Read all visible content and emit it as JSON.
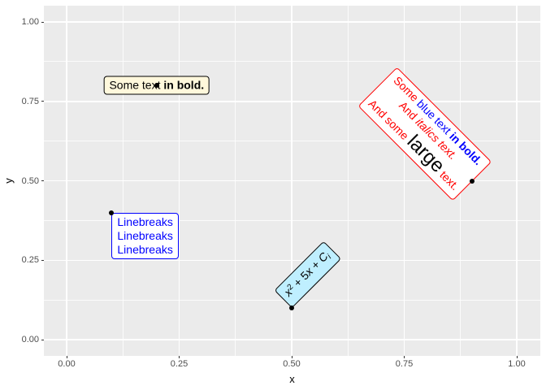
{
  "style": {
    "background": "#FFFFFF",
    "panel_background": "#EBEBEB",
    "grid_color": "#FFFFFF",
    "tick_mark_color": "#333333",
    "tick_label_color": "#4D4D4D",
    "axis_title_color": "#000000",
    "point_color": "#000000"
  },
  "chart_data": {
    "type": "scatter",
    "title": "",
    "xlabel": "x",
    "ylabel": "y",
    "xlim": [
      -0.05,
      1.05
    ],
    "ylim": [
      -0.05,
      1.05
    ],
    "grid": "white major and minor gridlines on grey panel (ggplot2 theme_grey), minors at 0.125 intervals",
    "legend": "none",
    "x_axis": {
      "ticks": [
        {
          "value": 0.0,
          "label": "0.00"
        },
        {
          "value": 0.25,
          "label": "0.25"
        },
        {
          "value": 0.5,
          "label": "0.50"
        },
        {
          "value": 0.75,
          "label": "0.75"
        },
        {
          "value": 1.0,
          "label": "1.00"
        }
      ]
    },
    "y_axis": {
      "ticks": [
        {
          "value": 0.0,
          "label": "0.00"
        },
        {
          "value": 0.25,
          "label": "0.25"
        },
        {
          "value": 0.5,
          "label": "0.50"
        },
        {
          "value": 0.75,
          "label": "0.75"
        },
        {
          "value": 1.0,
          "label": "1.00"
        }
      ]
    },
    "points": [
      {
        "x": 0.2,
        "y": 0.8
      },
      {
        "x": 0.1,
        "y": 0.4
      },
      {
        "x": 0.5,
        "y": 0.1
      },
      {
        "x": 0.9,
        "y": 0.5
      }
    ],
    "labels": [
      {
        "name": "richtext-box-bold",
        "x": 0.2,
        "y": 0.8,
        "hjust": 0.5,
        "vjust": 0.5,
        "angle": 0,
        "fill": "#FFF8DC",
        "border": "#000000",
        "color": "#000000",
        "lines": [
          [
            {
              "text": "Some text "
            },
            {
              "text": "in bold.",
              "bold": true
            }
          ]
        ]
      },
      {
        "name": "richtext-box-linebreaks",
        "x": 0.1,
        "y": 0.4,
        "hjust": 0,
        "vjust": 1,
        "angle": 0,
        "fill": "#FFFFFF",
        "border": "#0000FF",
        "color": "#0000FF",
        "lines": [
          [
            {
              "text": "Linebreaks"
            }
          ],
          [
            {
              "text": "Linebreaks"
            }
          ],
          [
            {
              "text": "Linebreaks"
            }
          ]
        ]
      },
      {
        "name": "richtext-box-formula",
        "x": 0.5,
        "y": 0.1,
        "hjust": 0,
        "vjust": 0,
        "angle": 45,
        "fill": "#BFEFFF",
        "border": "#000000",
        "color": "#000000",
        "lines": [
          [
            {
              "text": "x",
              "italic": true
            },
            {
              "text": "2",
              "sup": true
            },
            {
              "text": " + 5"
            },
            {
              "text": "x",
              "italic": true
            },
            {
              "text": " + "
            },
            {
              "text": "C",
              "italic": true
            },
            {
              "text": "i",
              "italic": true,
              "sub": true
            }
          ]
        ]
      },
      {
        "name": "richtext-box-red",
        "x": 0.9,
        "y": 0.5,
        "hjust": 1,
        "vjust": 0.5,
        "angle": -45,
        "fill": "#FFFFFF",
        "border": "#FF0000",
        "color": "#FF0000",
        "lines": [
          [
            {
              "text": "Some "
            },
            {
              "text": "blue text ",
              "color": "#0000FF"
            },
            {
              "text": "in bold.",
              "color": "#0000FF",
              "bold": true
            }
          ],
          [
            {
              "text": "And "
            },
            {
              "text": "italics text.",
              "italic": true
            }
          ],
          [
            {
              "text": "And some "
            },
            {
              "text": "large",
              "color": "#000000",
              "size": 24
            },
            {
              "text": " text."
            }
          ]
        ]
      }
    ]
  }
}
